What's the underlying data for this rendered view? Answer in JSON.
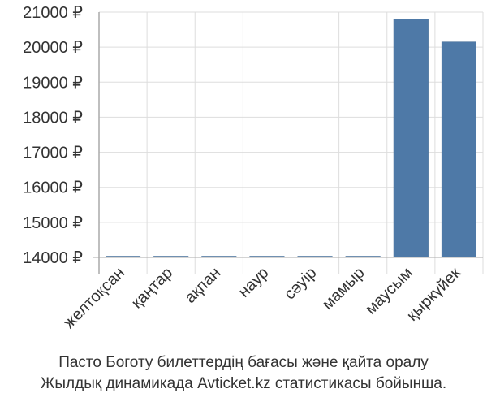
{
  "chart_data": {
    "type": "bar",
    "categories": [
      "желтоқсан",
      "қаңтар",
      "ақпан",
      "наур",
      "сәуір",
      "мамыр",
      "маусым",
      "қыркүйек"
    ],
    "values": [
      14000,
      14000,
      14000,
      14000,
      14000,
      14000,
      20800,
      20150
    ],
    "yticks": [
      "14000 ₽",
      "15000 ₽",
      "16000 ₽",
      "17000 ₽",
      "18000 ₽",
      "19000 ₽",
      "20000 ₽",
      "21000 ₽"
    ],
    "ylim": [
      14000,
      21000
    ],
    "grid": true,
    "bar_color": "#4e79a7",
    "grid_color": "#dddddd",
    "axis_color": "#aaaaaa"
  },
  "caption": {
    "line1": "Пасто Боготу билеттердің бағасы және қайта оралу",
    "line2": "Жылдық динамикада Avticket.kz статистикасы бойынша."
  }
}
